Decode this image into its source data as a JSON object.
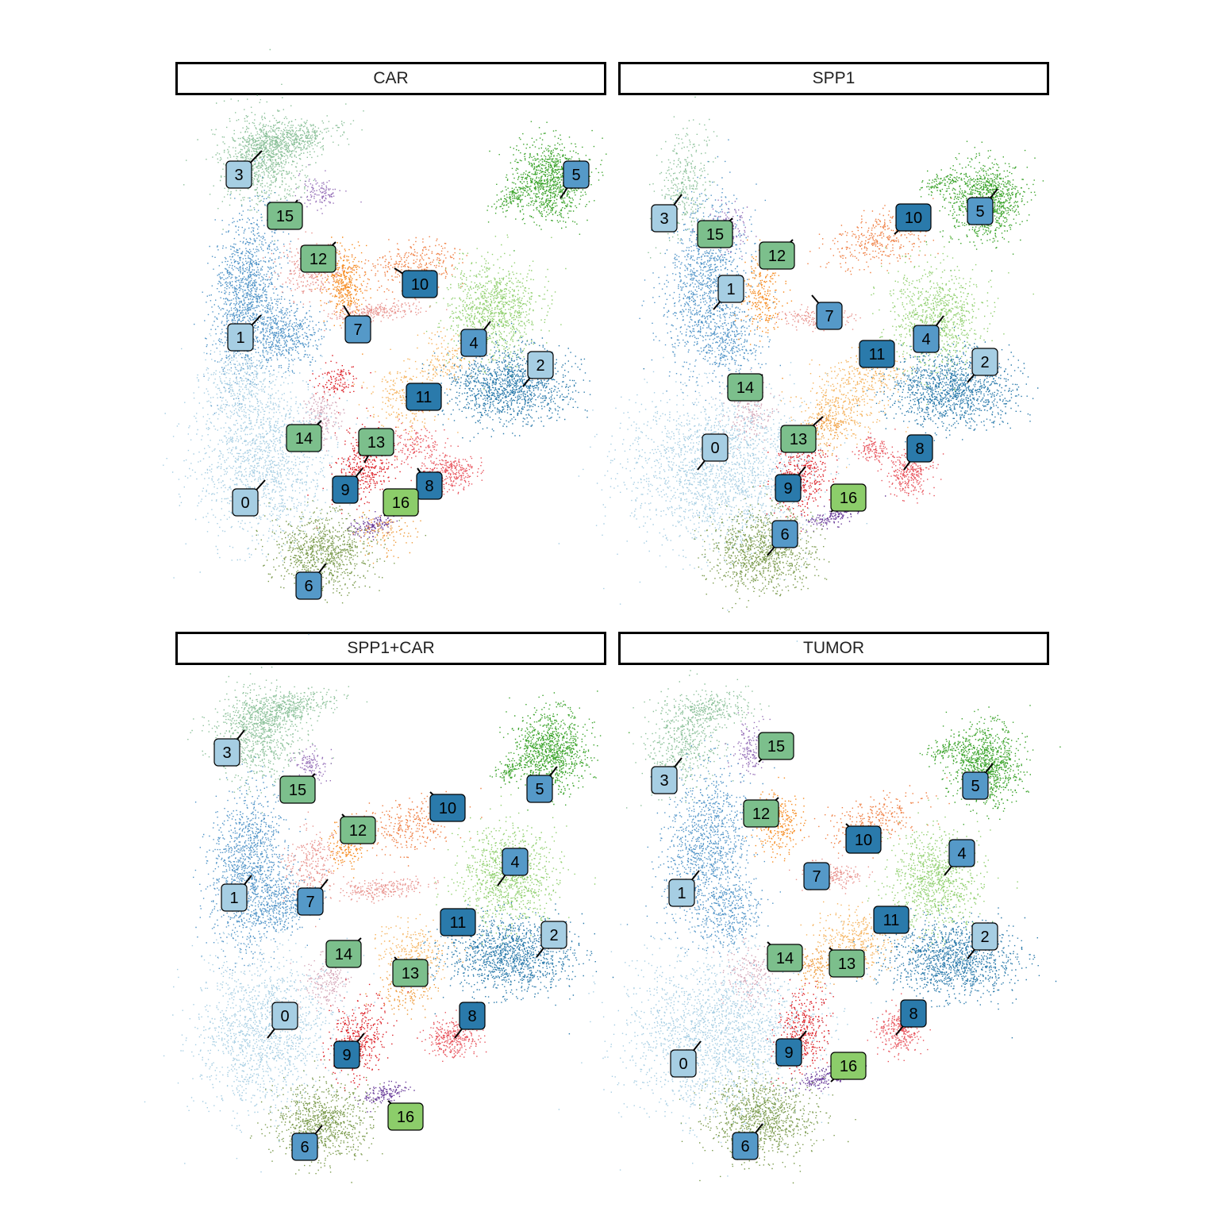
{
  "chart_data": {
    "type": "scatter",
    "description_type": "faceted UMAP scatter with cluster labels",
    "facets": [
      "CAR",
      "SPP1",
      "SPP1+CAR",
      "TUMOR"
    ],
    "clusters": [
      {
        "id": "0",
        "color": "#a6cee3",
        "label_fill": "#a6cee3"
      },
      {
        "id": "1",
        "color": "#4f93c7",
        "label_fill": "#a6cee3"
      },
      {
        "id": "2",
        "color": "#2a7aab",
        "label_fill": "#a6cee3"
      },
      {
        "id": "3",
        "color": "#8cc19a",
        "label_fill": "#a6cee3"
      },
      {
        "id": "4",
        "color": "#8fcf6d",
        "label_fill": "#5599c8"
      },
      {
        "id": "5",
        "color": "#3aa32a",
        "label_fill": "#5599c8"
      },
      {
        "id": "6",
        "color": "#7a9a4c",
        "label_fill": "#5599c8"
      },
      {
        "id": "7",
        "color": "#e8938e",
        "label_fill": "#5599c8"
      },
      {
        "id": "8",
        "color": "#e8555e",
        "label_fill": "#2a7aab"
      },
      {
        "id": "9",
        "color": "#dd1f26",
        "label_fill": "#2a7aab"
      },
      {
        "id": "10",
        "color": "#ef7f43",
        "label_fill": "#2a7aab"
      },
      {
        "id": "11",
        "color": "#f5b35e",
        "label_fill": "#2a7aab"
      },
      {
        "id": "12",
        "color": "#f68a1f",
        "label_fill": "#7cbf8c"
      },
      {
        "id": "13",
        "color": "#ee9a3a",
        "label_fill": "#7cbf8c"
      },
      {
        "id": "14",
        "color": "#d3a3b5",
        "label_fill": "#7cbf8c"
      },
      {
        "id": "15",
        "color": "#9670b8",
        "label_fill": "#7cbf8c"
      },
      {
        "id": "16",
        "color": "#6a3d9a",
        "label_fill": "#8ccd6a"
      }
    ],
    "xlabel": "",
    "ylabel": "",
    "legend": "none",
    "grid": false
  }
}
